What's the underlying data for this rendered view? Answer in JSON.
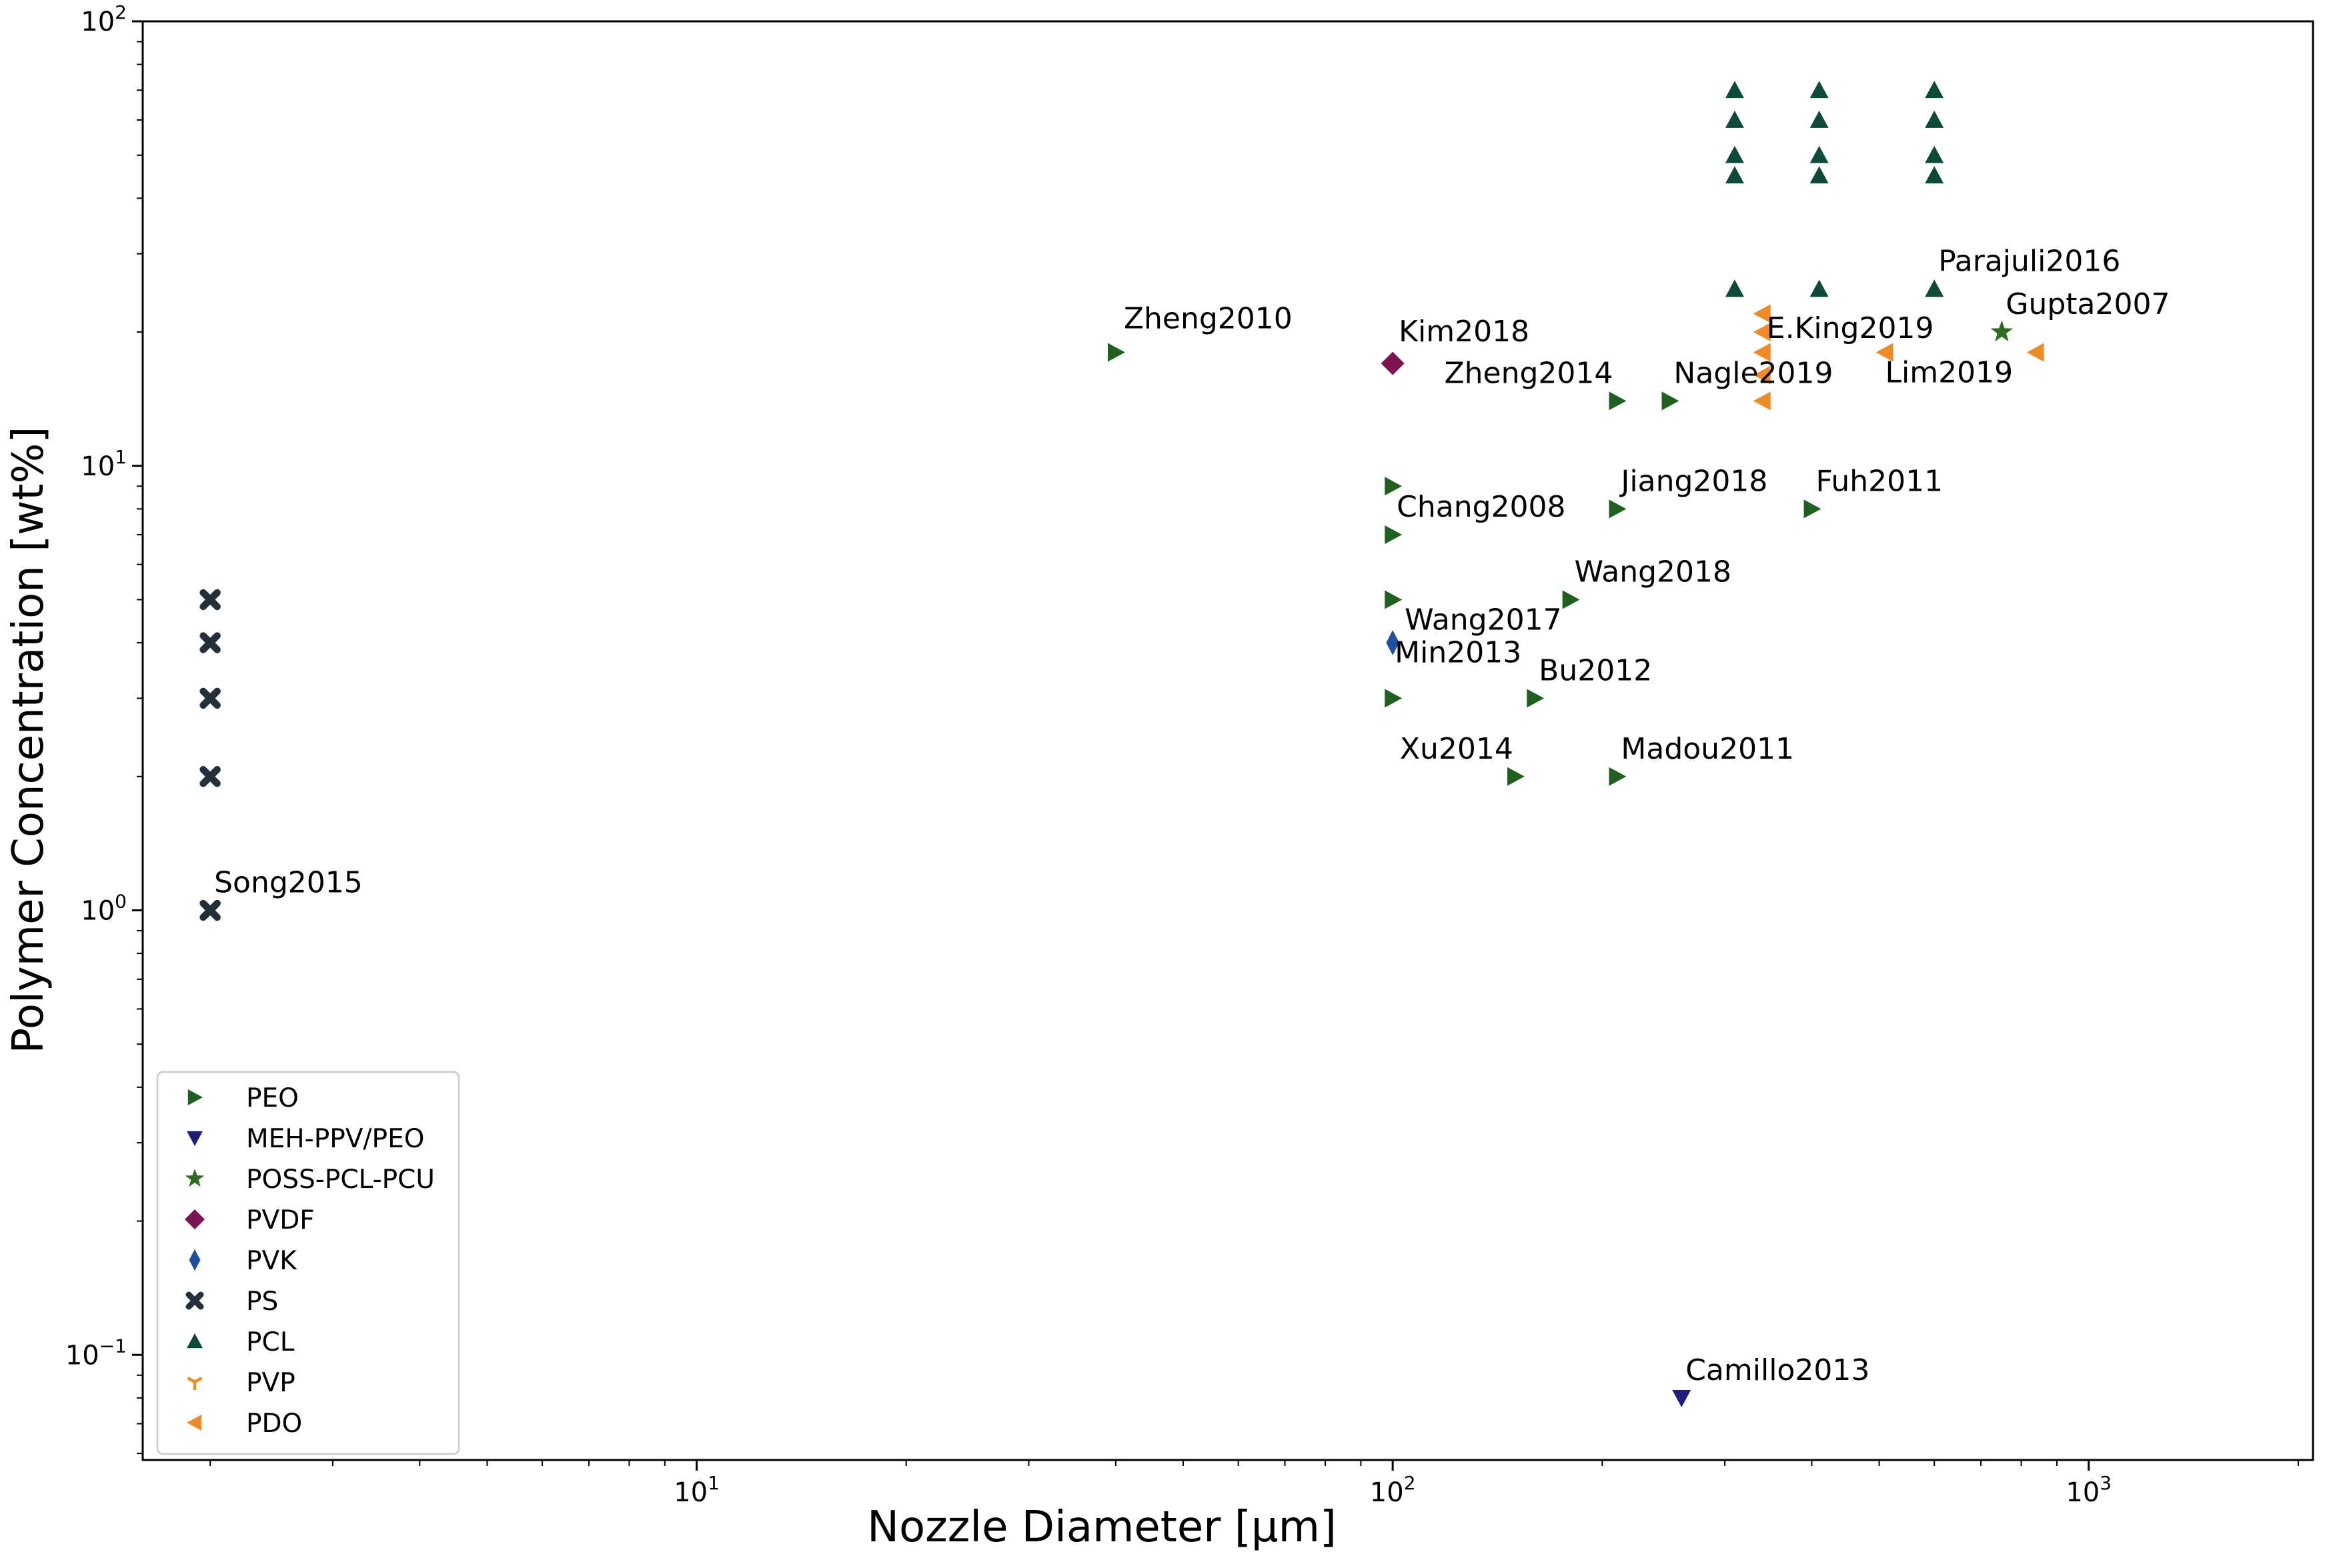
{
  "chart_data": {
    "type": "scatter",
    "title": "",
    "xlabel": "Nozzle Diameter    [μm]",
    "ylabel": "Polymer Concentration    [wt%]",
    "xscale": "log",
    "yscale": "log",
    "xlim": [
      1.6,
      2100
    ],
    "ylim": [
      0.058,
      100
    ],
    "grid": false,
    "legend_position": "lower-left",
    "x_ticks": [
      {
        "value": 10,
        "base": "10",
        "exp": "1"
      },
      {
        "value": 100,
        "base": "10",
        "exp": "2"
      },
      {
        "value": 1000,
        "base": "10",
        "exp": "3"
      }
    ],
    "y_ticks": [
      {
        "value": 0.1,
        "base": "10",
        "exp": "−1"
      },
      {
        "value": 1,
        "base": "10",
        "exp": "0"
      },
      {
        "value": 10,
        "base": "10",
        "exp": "1"
      },
      {
        "value": 100,
        "base": "10",
        "exp": "2"
      }
    ],
    "series": [
      {
        "name": "PEO",
        "marker": "triangle-right",
        "color": "#1f5f1f",
        "points": [
          [
            40,
            18
          ],
          [
            100,
            9
          ],
          [
            100,
            7
          ],
          [
            100,
            5
          ],
          [
            100,
            3
          ],
          [
            150,
            2
          ],
          [
            160,
            3
          ],
          [
            180,
            5
          ],
          [
            210,
            14
          ],
          [
            210,
            8
          ],
          [
            210,
            2
          ],
          [
            250,
            14
          ],
          [
            400,
            8
          ]
        ]
      },
      {
        "name": "MEH-PPV/PEO",
        "marker": "triangle-down",
        "color": "#1f1f7a",
        "points": [
          [
            260,
            0.08
          ]
        ]
      },
      {
        "name": "POSS-PCL-PCU",
        "marker": "star",
        "color": "#2e6b1f",
        "points": [
          [
            750,
            20
          ]
        ]
      },
      {
        "name": "PVDF",
        "marker": "diamond",
        "color": "#7d1450",
        "points": [
          [
            100,
            17
          ]
        ]
      },
      {
        "name": "PVK",
        "marker": "thin-diamond",
        "color": "#1f4fa0",
        "points": [
          [
            100,
            4
          ]
        ]
      },
      {
        "name": "PS",
        "marker": "x-filled",
        "color": "#232f3b",
        "points": [
          [
            2,
            5
          ],
          [
            2,
            4
          ],
          [
            2,
            3
          ],
          [
            2,
            2
          ],
          [
            2,
            1
          ]
        ]
      },
      {
        "name": "PCL",
        "marker": "triangle-up",
        "color": "#0e4a3c",
        "points": [
          [
            310,
            70
          ],
          [
            310,
            60
          ],
          [
            310,
            50
          ],
          [
            310,
            45
          ],
          [
            310,
            25
          ],
          [
            410,
            70
          ],
          [
            410,
            60
          ],
          [
            410,
            50
          ],
          [
            410,
            45
          ],
          [
            410,
            25
          ],
          [
            600,
            70
          ],
          [
            600,
            60
          ],
          [
            600,
            50
          ],
          [
            600,
            45
          ],
          [
            600,
            25
          ]
        ]
      },
      {
        "name": "PVP",
        "marker": "tri-down",
        "color": "#f08a24",
        "points": []
      },
      {
        "name": "PDO",
        "marker": "triangle-left",
        "color": "#f08a24",
        "points": [
          [
            340,
            22
          ],
          [
            340,
            20
          ],
          [
            340,
            18
          ],
          [
            340,
            16
          ],
          [
            340,
            14
          ],
          [
            510,
            18
          ],
          [
            840,
            18
          ]
        ]
      }
    ],
    "annotations": [
      {
        "text": "Zheng2010",
        "x": 40,
        "y": 18,
        "anchor": "start",
        "dx": 0.2,
        "dy": -0.6
      },
      {
        "text": "Kim2018",
        "x": 100,
        "y": 17,
        "anchor": "start",
        "dx": 0.15,
        "dy": -0.55
      },
      {
        "text": "Zheng2014",
        "x": 210,
        "y": 14,
        "anchor": "end",
        "dx": -0.1,
        "dy": -0.45
      },
      {
        "text": "Nagle2019",
        "x": 250,
        "y": 14,
        "anchor": "start",
        "dx": 0.1,
        "dy": -0.45
      },
      {
        "text": "E.King2019",
        "x": 340,
        "y": 20,
        "anchor": "start",
        "dx": 0.1,
        "dy": 0.15
      },
      {
        "text": "Lim2019",
        "x": 510,
        "y": 18,
        "anchor": "start",
        "dx": 0.0,
        "dy": 0.75
      },
      {
        "text": "Parajuli2016",
        "x": 600,
        "y": 25,
        "anchor": "start",
        "dx": 0.1,
        "dy": -0.45
      },
      {
        "text": "Gupta2007",
        "x": 750,
        "y": 20,
        "anchor": "start",
        "dx": 0.1,
        "dy": -0.45
      },
      {
        "text": "Jiang2018",
        "x": 210,
        "y": 8,
        "anchor": "start",
        "dx": 0.1,
        "dy": -0.45
      },
      {
        "text": "Fuh2011",
        "x": 400,
        "y": 8,
        "anchor": "start",
        "dx": 0.1,
        "dy": -0.45
      },
      {
        "text": "Chang2008",
        "x": 100,
        "y": 7,
        "anchor": "start",
        "dx": 0.1,
        "dy": -0.45
      },
      {
        "text": "Wang2018",
        "x": 180,
        "y": 5,
        "anchor": "start",
        "dx": 0.1,
        "dy": -0.45
      },
      {
        "text": "Wang2017",
        "x": 100,
        "y": 5,
        "anchor": "start",
        "dx": 0.3,
        "dy": 0.75
      },
      {
        "text": "Min2013",
        "x": 100,
        "y": 3,
        "anchor": "start",
        "dx": 0.05,
        "dy": -0.9
      },
      {
        "text": "Bu2012",
        "x": 160,
        "y": 3,
        "anchor": "start",
        "dx": 0.1,
        "dy": -0.45
      },
      {
        "text": "Xu2014",
        "x": 150,
        "y": 2,
        "anchor": "end",
        "dx": -0.05,
        "dy": -0.45
      },
      {
        "text": "Madou2011",
        "x": 210,
        "y": 2,
        "anchor": "start",
        "dx": 0.1,
        "dy": -0.45
      },
      {
        "text": "Song2015",
        "x": 2,
        "y": 1,
        "anchor": "start",
        "dx": 0.1,
        "dy": -0.45
      },
      {
        "text": "Camillo2013",
        "x": 260,
        "y": 0.08,
        "anchor": "start",
        "dx": 0.1,
        "dy": -0.45
      }
    ]
  }
}
